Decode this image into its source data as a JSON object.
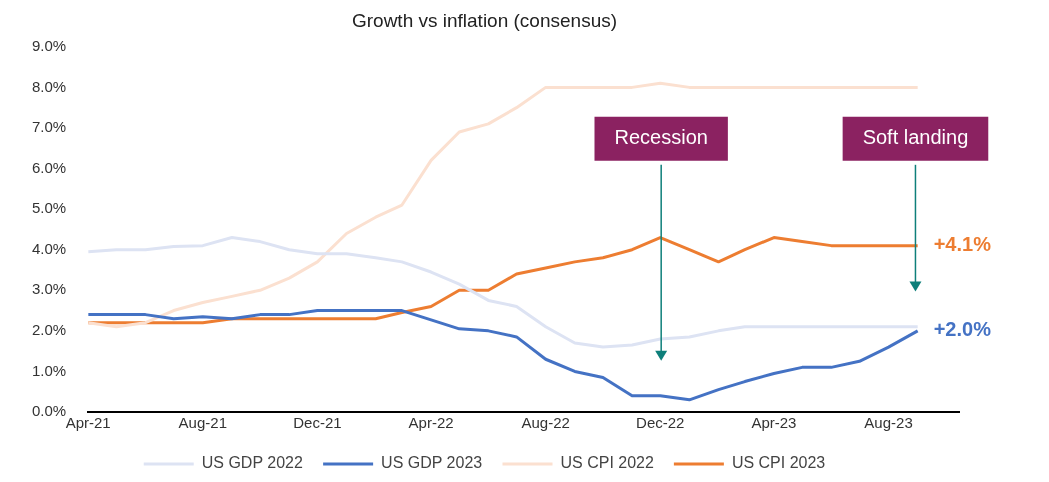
{
  "chart_data": {
    "type": "line",
    "title": "Growth vs inflation (consensus)",
    "x": [
      "2021-04",
      "2021-05",
      "2021-06",
      "2021-07",
      "2021-08",
      "2021-09",
      "2021-10",
      "2021-11",
      "2021-12",
      "2022-01",
      "2022-02",
      "2022-03",
      "2022-04",
      "2022-05",
      "2022-06",
      "2022-07",
      "2022-08",
      "2022-09",
      "2022-10",
      "2022-11",
      "2022-12",
      "2023-01",
      "2023-02",
      "2023-03",
      "2023-04",
      "2023-05",
      "2023-06",
      "2023-07",
      "2023-08",
      "2023-09"
    ],
    "series": [
      {
        "name": "US GDP 2022",
        "color": "#dde3f3",
        "values": [
          3.95,
          4.0,
          4.0,
          4.08,
          4.1,
          4.3,
          4.2,
          4.0,
          3.9,
          3.9,
          3.8,
          3.7,
          3.45,
          3.15,
          2.75,
          2.6,
          2.1,
          1.7,
          1.6,
          1.65,
          1.8,
          1.85,
          2.0,
          2.1,
          2.1,
          2.1,
          2.1,
          2.1,
          2.1,
          2.1
        ]
      },
      {
        "name": "US GDP 2023",
        "color": "#4472c4",
        "values": [
          2.4,
          2.4,
          2.4,
          2.3,
          2.35,
          2.3,
          2.4,
          2.4,
          2.5,
          2.5,
          2.5,
          2.5,
          2.27,
          2.05,
          2.0,
          1.85,
          1.3,
          1.0,
          0.85,
          0.4,
          0.4,
          0.3,
          0.55,
          0.75,
          0.95,
          1.1,
          1.1,
          1.25,
          1.6,
          2.0
        ],
        "value_labels": [
          null,
          null,
          null,
          null,
          null,
          null,
          null,
          null,
          null,
          null,
          null,
          null,
          null,
          null,
          null,
          null,
          null,
          null,
          null,
          null,
          null,
          null,
          null,
          null,
          null,
          null,
          null,
          null,
          null,
          "+2.0%"
        ]
      },
      {
        "name": "US CPI 2022",
        "color": "#fbe0d0",
        "values": [
          2.2,
          2.1,
          2.2,
          2.5,
          2.7,
          2.85,
          3.0,
          3.3,
          3.7,
          4.4,
          4.8,
          5.1,
          6.2,
          6.9,
          7.1,
          7.5,
          8.0,
          8.0,
          8.0,
          8.0,
          8.1,
          8.0,
          8.0,
          8.0,
          8.0,
          8.0,
          8.0,
          8.0,
          8.0,
          8.0
        ]
      },
      {
        "name": "US CPI 2023",
        "color": "#ed7d31",
        "values": [
          2.2,
          2.2,
          2.2,
          2.2,
          2.2,
          2.3,
          2.3,
          2.3,
          2.3,
          2.3,
          2.3,
          2.45,
          2.6,
          3.0,
          3.0,
          3.4,
          3.55,
          3.7,
          3.8,
          4.0,
          4.3,
          4.0,
          3.7,
          4.0,
          4.3,
          4.2,
          4.1,
          4.1,
          4.1,
          4.1
        ],
        "value_labels": [
          null,
          null,
          null,
          null,
          null,
          null,
          null,
          null,
          null,
          null,
          null,
          null,
          null,
          null,
          null,
          null,
          null,
          null,
          null,
          null,
          null,
          null,
          null,
          null,
          null,
          null,
          null,
          null,
          null,
          "+4.1%"
        ]
      }
    ],
    "xlim": [
      "2021-04",
      "2023-10-15"
    ],
    "xticks": [
      {
        "value": "2021-04",
        "label": "Apr-21"
      },
      {
        "value": "2021-08",
        "label": "Aug-21"
      },
      {
        "value": "2021-12",
        "label": "Dec-21"
      },
      {
        "value": "2022-04",
        "label": "Apr-22"
      },
      {
        "value": "2022-08",
        "label": "Aug-22"
      },
      {
        "value": "2022-12",
        "label": "Dec-22"
      },
      {
        "value": "2023-04",
        "label": "Apr-23"
      },
      {
        "value": "2023-08",
        "label": "Aug-23"
      }
    ],
    "ylim": [
      0,
      9
    ],
    "yticks": [
      {
        "value": 0,
        "label": "0.0%"
      },
      {
        "value": 1,
        "label": "1.0%"
      },
      {
        "value": 2,
        "label": "2.0%"
      },
      {
        "value": 3,
        "label": "3.0%"
      },
      {
        "value": 4,
        "label": "4.0%"
      },
      {
        "value": 5,
        "label": "5.0%"
      },
      {
        "value": 6,
        "label": "6.0%"
      },
      {
        "value": 7,
        "label": "7.0%"
      },
      {
        "value": 8,
        "label": "8.0%"
      },
      {
        "value": 9,
        "label": "9.0%"
      }
    ],
    "annotations": [
      "Recession",
      "Soft landing"
    ],
    "grid": false,
    "legend": "bottom",
    "marker": "none",
    "line_style": "solid"
  }
}
